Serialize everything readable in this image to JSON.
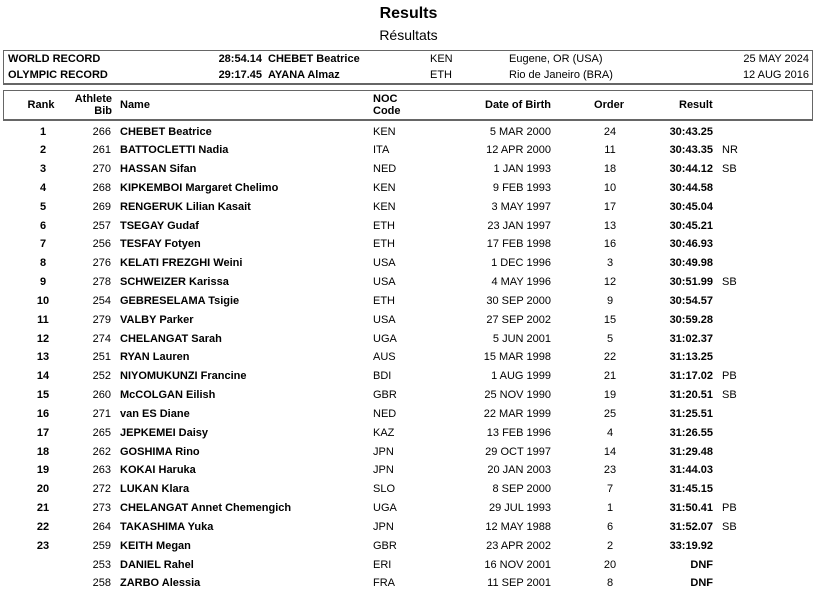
{
  "title": "Results",
  "subtitle": "Résultats",
  "records": [
    {
      "label": "WORLD RECORD",
      "time": "28:54.14",
      "name": "CHEBET Beatrice",
      "noc": "KEN",
      "venue": "Eugene, OR (USA)",
      "date": "25 MAY 2024"
    },
    {
      "label": "OLYMPIC RECORD",
      "time": "29:17.45",
      "name": "AYANA Almaz",
      "noc": "ETH",
      "venue": "Rio de Janeiro (BRA)",
      "date": "12 AUG 2016"
    }
  ],
  "headers": {
    "rank": "Rank",
    "bib_1": "Athlete",
    "bib_2": "Bib",
    "name": "Name",
    "noc_1": "NOC",
    "noc_2": "Code",
    "dob": "Date of Birth",
    "order": "Order",
    "result": "Result"
  },
  "rows": [
    {
      "rank": "1",
      "bib": "266",
      "name": "CHEBET Beatrice",
      "noc": "KEN",
      "dob": "5 MAR 2000",
      "order": "24",
      "result": "30:43.25",
      "mark": ""
    },
    {
      "rank": "2",
      "bib": "261",
      "name": "BATTOCLETTI Nadia",
      "noc": "ITA",
      "dob": "12 APR 2000",
      "order": "11",
      "result": "30:43.35",
      "mark": "NR"
    },
    {
      "rank": "3",
      "bib": "270",
      "name": "HASSAN Sifan",
      "noc": "NED",
      "dob": "1 JAN 1993",
      "order": "18",
      "result": "30:44.12",
      "mark": "SB"
    },
    {
      "rank": "4",
      "bib": "268",
      "name": "KIPKEMBOI Margaret Chelimo",
      "noc": "KEN",
      "dob": "9 FEB 1993",
      "order": "10",
      "result": "30:44.58",
      "mark": ""
    },
    {
      "rank": "5",
      "bib": "269",
      "name": "RENGERUK Lilian Kasait",
      "noc": "KEN",
      "dob": "3 MAY 1997",
      "order": "17",
      "result": "30:45.04",
      "mark": ""
    },
    {
      "rank": "6",
      "bib": "257",
      "name": "TSEGAY Gudaf",
      "noc": "ETH",
      "dob": "23 JAN 1997",
      "order": "13",
      "result": "30:45.21",
      "mark": ""
    },
    {
      "rank": "7",
      "bib": "256",
      "name": "TESFAY Fotyen",
      "noc": "ETH",
      "dob": "17 FEB 1998",
      "order": "16",
      "result": "30:46.93",
      "mark": ""
    },
    {
      "rank": "8",
      "bib": "276",
      "name": "KELATI FREZGHI Weini",
      "noc": "USA",
      "dob": "1 DEC 1996",
      "order": "3",
      "result": "30:49.98",
      "mark": ""
    },
    {
      "rank": "9",
      "bib": "278",
      "name": "SCHWEIZER Karissa",
      "noc": "USA",
      "dob": "4 MAY 1996",
      "order": "12",
      "result": "30:51.99",
      "mark": "SB"
    },
    {
      "rank": "10",
      "bib": "254",
      "name": "GEBRESELAMA Tsigie",
      "noc": "ETH",
      "dob": "30 SEP 2000",
      "order": "9",
      "result": "30:54.57",
      "mark": ""
    },
    {
      "rank": "11",
      "bib": "279",
      "name": "VALBY Parker",
      "noc": "USA",
      "dob": "27 SEP 2002",
      "order": "15",
      "result": "30:59.28",
      "mark": ""
    },
    {
      "rank": "12",
      "bib": "274",
      "name": "CHELANGAT Sarah",
      "noc": "UGA",
      "dob": "5 JUN 2001",
      "order": "5",
      "result": "31:02.37",
      "mark": ""
    },
    {
      "rank": "13",
      "bib": "251",
      "name": "RYAN Lauren",
      "noc": "AUS",
      "dob": "15 MAR 1998",
      "order": "22",
      "result": "31:13.25",
      "mark": ""
    },
    {
      "rank": "14",
      "bib": "252",
      "name": "NIYOMUKUNZI Francine",
      "noc": "BDI",
      "dob": "1 AUG 1999",
      "order": "21",
      "result": "31:17.02",
      "mark": "PB"
    },
    {
      "rank": "15",
      "bib": "260",
      "name": "McCOLGAN Eilish",
      "noc": "GBR",
      "dob": "25 NOV 1990",
      "order": "19",
      "result": "31:20.51",
      "mark": "SB"
    },
    {
      "rank": "16",
      "bib": "271",
      "name": "van ES Diane",
      "noc": "NED",
      "dob": "22 MAR 1999",
      "order": "25",
      "result": "31:25.51",
      "mark": ""
    },
    {
      "rank": "17",
      "bib": "265",
      "name": "JEPKEMEI Daisy",
      "noc": "KAZ",
      "dob": "13 FEB 1996",
      "order": "4",
      "result": "31:26.55",
      "mark": ""
    },
    {
      "rank": "18",
      "bib": "262",
      "name": "GOSHIMA Rino",
      "noc": "JPN",
      "dob": "29 OCT 1997",
      "order": "14",
      "result": "31:29.48",
      "mark": ""
    },
    {
      "rank": "19",
      "bib": "263",
      "name": "KOKAI Haruka",
      "noc": "JPN",
      "dob": "20 JAN 2003",
      "order": "23",
      "result": "31:44.03",
      "mark": ""
    },
    {
      "rank": "20",
      "bib": "272",
      "name": "LUKAN Klara",
      "noc": "SLO",
      "dob": "8 SEP 2000",
      "order": "7",
      "result": "31:45.15",
      "mark": ""
    },
    {
      "rank": "21",
      "bib": "273",
      "name": "CHELANGAT Annet Chemengich",
      "noc": "UGA",
      "dob": "29 JUL 1993",
      "order": "1",
      "result": "31:50.41",
      "mark": "PB"
    },
    {
      "rank": "22",
      "bib": "264",
      "name": "TAKASHIMA Yuka",
      "noc": "JPN",
      "dob": "12 MAY 1988",
      "order": "6",
      "result": "31:52.07",
      "mark": "SB"
    },
    {
      "rank": "23",
      "bib": "259",
      "name": "KEITH Megan",
      "noc": "GBR",
      "dob": "23 APR 2002",
      "order": "2",
      "result": "33:19.92",
      "mark": ""
    },
    {
      "rank": "",
      "bib": "253",
      "name": "DANIEL Rahel",
      "noc": "ERI",
      "dob": "16 NOV 2001",
      "order": "20",
      "result": "DNF",
      "mark": ""
    },
    {
      "rank": "",
      "bib": "258",
      "name": "ZARBO Alessia",
      "noc": "FRA",
      "dob": "11 SEP 2001",
      "order": "8",
      "result": "DNF",
      "mark": ""
    }
  ]
}
